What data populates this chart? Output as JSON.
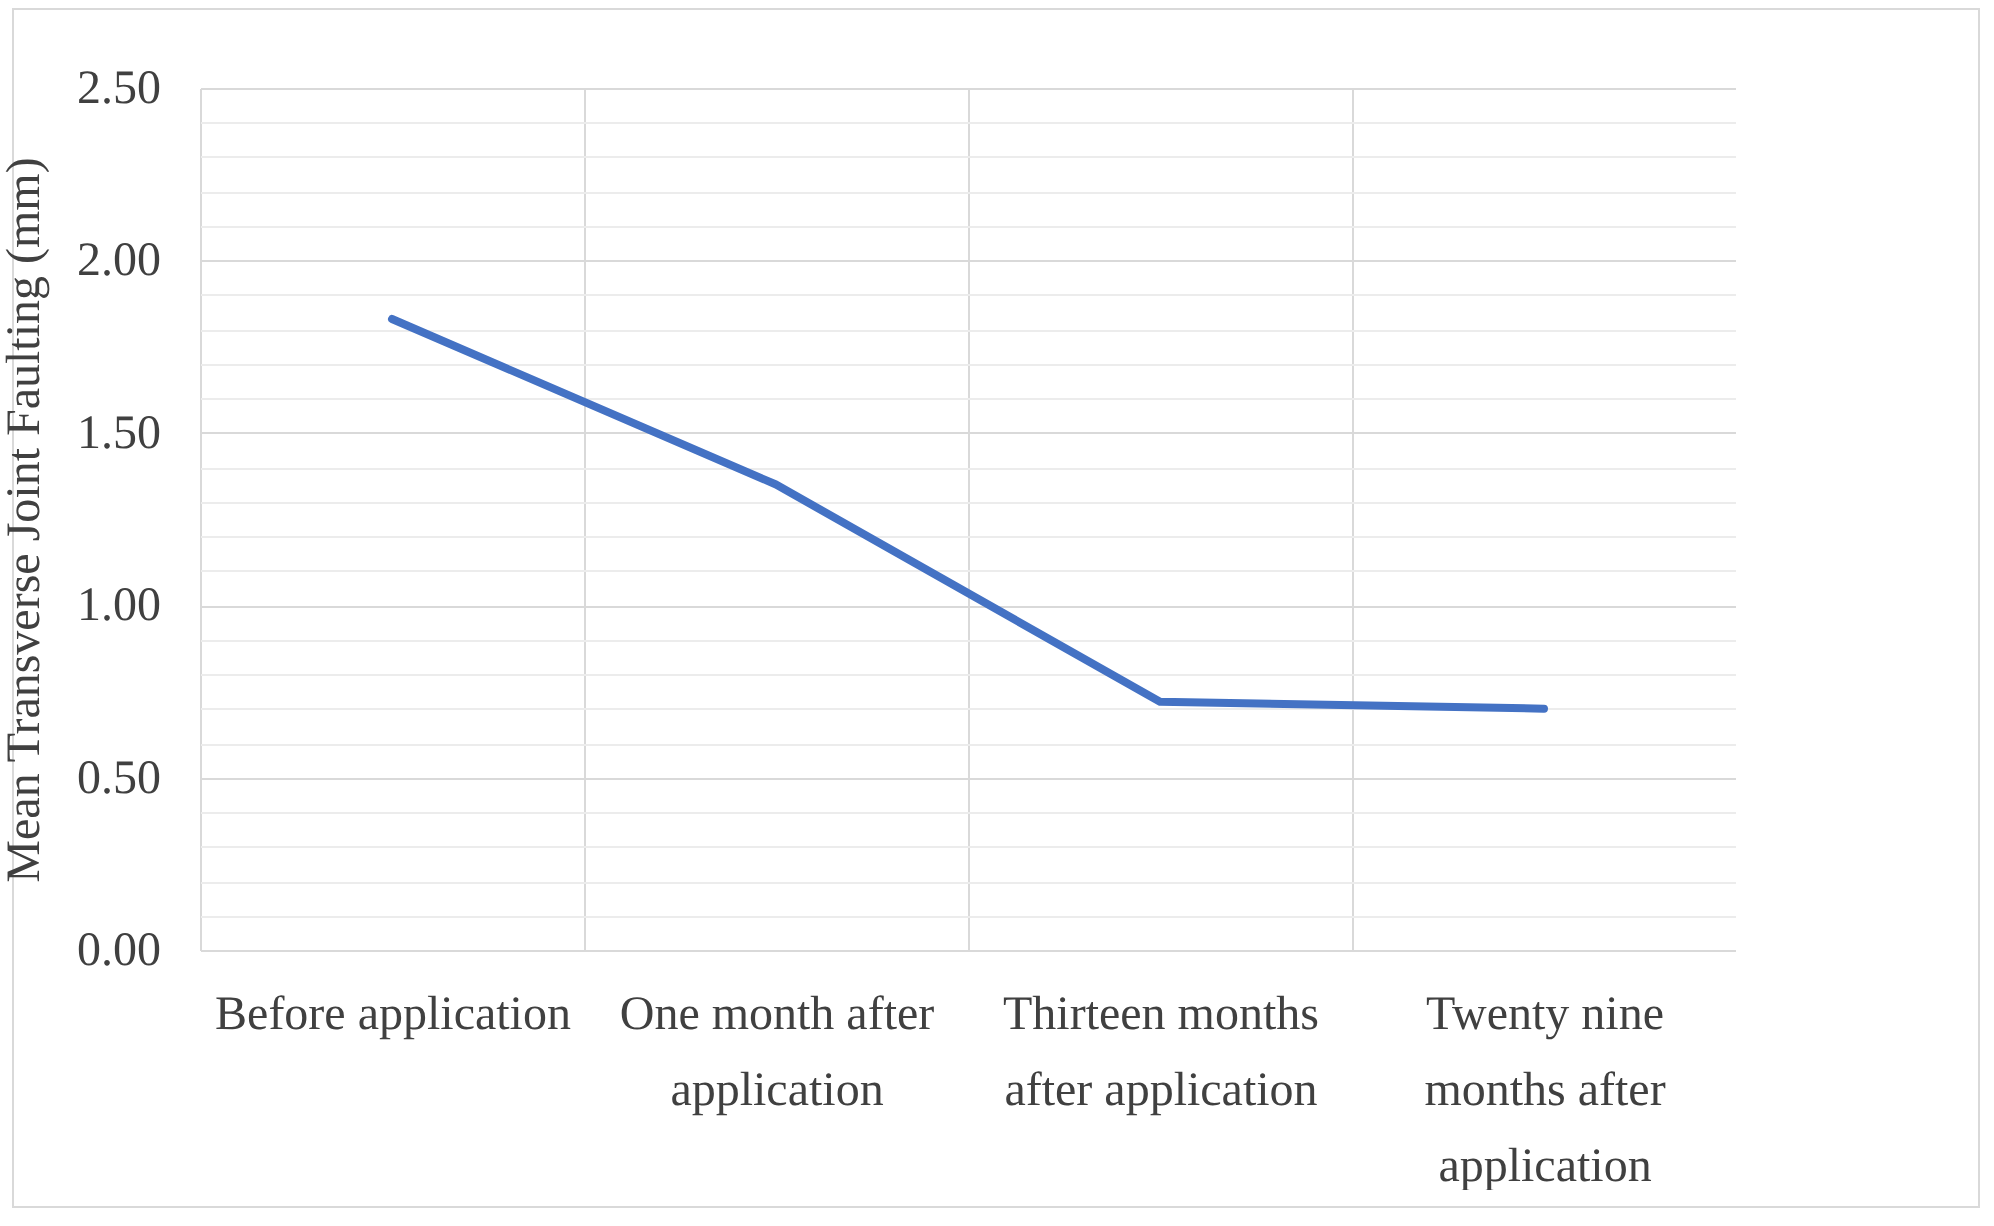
{
  "chart_data": {
    "type": "line",
    "ylabel": "Mean Transverse Joint Faulting (mm)",
    "categories": [
      "Before application",
      "One month after application",
      "Thirteen months after application",
      "Twenty nine months after application"
    ],
    "series": [
      {
        "color": "#4472c4",
        "values": [
          1.83,
          1.35,
          0.72,
          0.7
        ]
      }
    ],
    "ylim": [
      0,
      2.5
    ],
    "yticks": [
      "0.00",
      {
        "value": 0.1,
        "label": null
      },
      {
        "value": 0.2,
        "label": null
      },
      {
        "value": 0.3,
        "label": null
      },
      {
        "value": 0.4,
        "label": null
      },
      {
        "value": 0.5,
        "label": "0.50"
      },
      {
        "value": 0.6,
        "label": null
      },
      {
        "value": 0.7,
        "label": null
      },
      {
        "value": 0.8,
        "label": null
      },
      {
        "value": 0.9,
        "label": null
      },
      {
        "value": 1,
        "label": "1.00"
      },
      {
        "value": 1.1,
        "label": null
      },
      {
        "value": 1.2,
        "label": null
      },
      {
        "value": 1.3,
        "label": null
      },
      {
        "value": 1.4,
        "label": null
      },
      {
        "value": 1.5,
        "label": "1.50"
      },
      {
        "value": 1.6,
        "label": null
      },
      {
        "value": 1.7,
        "label": null
      },
      {
        "value": 1.8,
        "label": null
      },
      {
        "value": 1.9,
        "label": null
      },
      {
        "value": 2,
        "label": "2.00"
      },
      {
        "value": 2.1,
        "label": null
      },
      {
        "value": 2.2,
        "label": null
      },
      {
        "value": 2.3,
        "label": null
      },
      {
        "value": 2.4,
        "label": null
      },
      {
        "value": 2.5,
        "label": "2.50"
      }
    ],
    "grid": true,
    "marker": "none",
    "line_style": "solid"
  }
}
